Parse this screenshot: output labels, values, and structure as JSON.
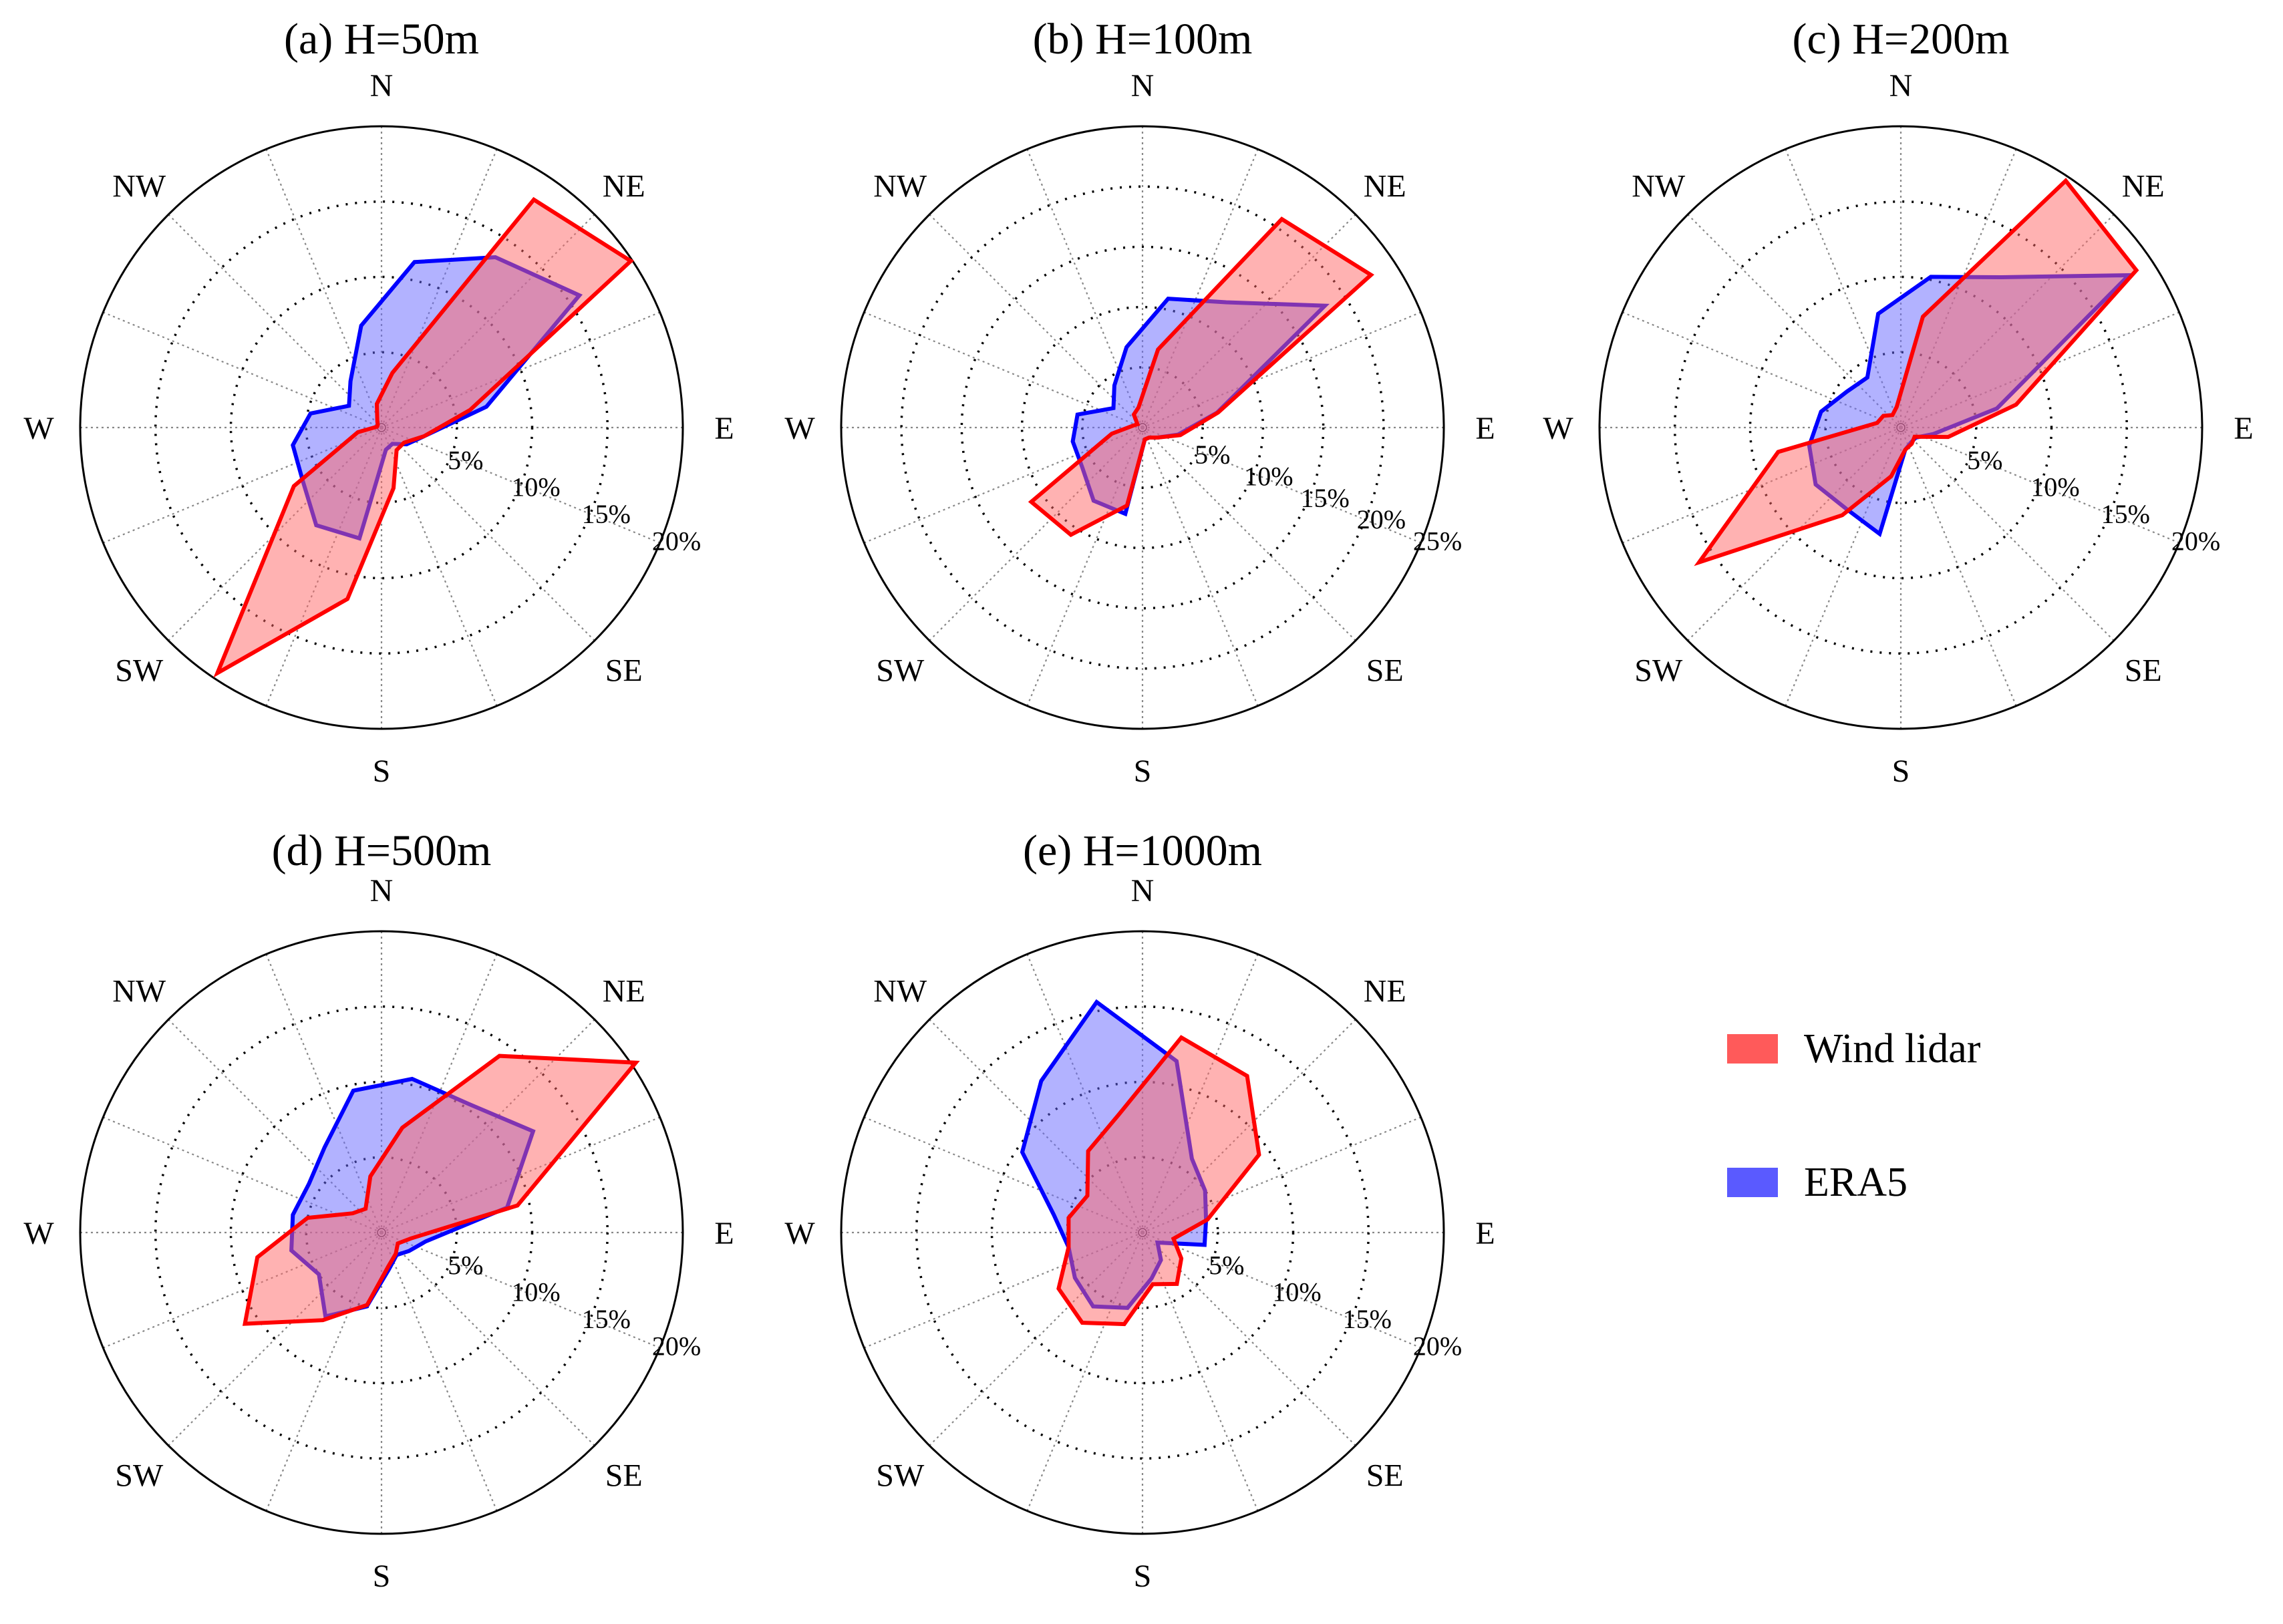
{
  "legend": [
    {
      "label": "Wind lidar",
      "color": "#ff5a5a"
    },
    {
      "label": "ERA5",
      "color": "#5a5aff"
    }
  ],
  "colors": {
    "lidar_line": "#ff0000",
    "lidar_fill": "#ff6666",
    "era5_line": "#0000ff",
    "era5_fill": "#6666ff"
  },
  "chart_data": [
    {
      "type": "polar-area",
      "title": "(a) H=50m",
      "rmax": 20,
      "rings": [
        5,
        10,
        15,
        20
      ],
      "ring_labels": [
        "5%",
        "10%",
        "15%",
        "20%"
      ],
      "direction_labels": [
        "N",
        "NE",
        "E",
        "SE",
        "S",
        "SW",
        "W",
        "NW"
      ],
      "bin_bearings_deg": [
        11.25,
        33.75,
        56.25,
        78.75,
        101.25,
        123.75,
        146.25,
        168.75,
        191.25,
        213.75,
        236.25,
        258.75,
        281.25,
        303.75,
        326.25,
        348.75
      ],
      "series": [
        {
          "name": "Wind lidar",
          "values": [
            3.7,
            18.2,
            19.9,
            6.0,
            2.9,
            1.8,
            1.8,
            4.1,
            11.6,
            19.6,
            7.0,
            1.6,
            0.3,
            0.3,
            0.5,
            1.6
          ]
        },
        {
          "name": "ERA5",
          "values": [
            11.2,
            13.6,
            15.8,
            7.1,
            2.9,
            2.0,
            1.3,
            1.5,
            7.5,
            7.8,
            6.3,
            6.0,
            4.8,
            2.6,
            3.7,
            6.9
          ]
        }
      ]
    },
    {
      "type": "polar-area",
      "title": "(b) H=100m",
      "rmax": 25,
      "rings": [
        5,
        10,
        15,
        20,
        25
      ],
      "ring_labels": [
        "5%",
        "10%",
        "15%",
        "20%",
        "25%"
      ],
      "direction_labels": [
        "N",
        "NE",
        "E",
        "SE",
        "S",
        "SW",
        "W",
        "NW"
      ],
      "bin_bearings_deg": [
        11.25,
        33.75,
        56.25,
        78.75,
        101.25,
        123.75,
        146.25,
        168.75,
        191.25,
        213.75,
        236.25,
        258.75,
        281.25,
        303.75,
        326.25,
        348.75
      ],
      "series": [
        {
          "name": "Wind lidar",
          "values": [
            6.6,
            20.8,
            22.8,
            6.4,
            3.2,
            1.5,
            1.0,
            1.0,
            6.6,
            10.7,
            11.1,
            2.6,
            0.8,
            0.5,
            1.3,
            1.7
          ]
        },
        {
          "name": "ERA5",
          "values": [
            10.9,
            12.5,
            18.2,
            6.3,
            3.0,
            1.5,
            1.0,
            1.0,
            7.3,
            7.3,
            6.0,
            5.9,
            5.5,
            2.9,
            4.2,
            6.8
          ]
        }
      ]
    },
    {
      "type": "polar-area",
      "title": "(c) H=200m",
      "rmax": 20,
      "rings": [
        5,
        10,
        15,
        20
      ],
      "ring_labels": [
        "5%",
        "10%",
        "15%",
        "20%"
      ],
      "direction_labels": [
        "N",
        "NE",
        "E",
        "SE",
        "S",
        "SW",
        "W",
        "NW"
      ],
      "bin_bearings_deg": [
        11.25,
        33.75,
        56.25,
        78.75,
        101.25,
        123.75,
        146.25,
        168.75,
        191.25,
        213.75,
        236.25,
        258.75,
        281.25,
        303.75,
        326.25,
        348.75
      ],
      "series": [
        {
          "name": "Wind lidar",
          "values": [
            7.5,
            19.7,
            18.8,
            7.8,
            3.2,
            1.1,
            1.3,
            1.5,
            3.3,
            7.0,
            16.1,
            8.3,
            1.6,
            1.4,
            1.0,
            1.4
          ]
        },
        {
          "name": "ERA5",
          "values": [
            10.2,
            12.0,
            18.2,
            6.5,
            2.2,
            1.2,
            1.2,
            1.5,
            7.2,
            6.5,
            6.8,
            6.2,
            5.4,
            4.3,
            4.0,
            7.7
          ]
        }
      ]
    },
    {
      "type": "polar-area",
      "title": "(d) H=500m",
      "rmax": 20,
      "rings": [
        5,
        10,
        15,
        20
      ],
      "ring_labels": [
        "5%",
        "10%",
        "15%",
        "20%"
      ],
      "direction_labels": [
        "N",
        "NE",
        "E",
        "SE",
        "S",
        "SW",
        "W",
        "NW"
      ],
      "bin_bearings_deg": [
        11.25,
        33.75,
        56.25,
        78.75,
        101.25,
        123.75,
        146.25,
        168.75,
        191.25,
        213.75,
        236.25,
        258.75,
        281.25,
        303.75,
        326.25,
        348.75
      ],
      "series": [
        {
          "name": "Wind lidar",
          "values": [
            7.1,
            14.1,
            20.3,
            9.2,
            2.0,
            1.3,
            1.7,
            2.3,
            4.9,
            7.0,
            10.9,
            8.4,
            5.0,
            2.3,
            1.9,
            3.8
          ]
        },
        {
          "name": "ERA5",
          "values": [
            10.4,
            10.3,
            12.1,
            8.5,
            3.0,
            2.2,
            1.8,
            2.5,
            5.0,
            6.7,
            5.0,
            6.1,
            6.0,
            5.8,
            6.8,
            9.6
          ]
        }
      ]
    },
    {
      "type": "polar-area",
      "title": "(e) H=1000m",
      "rmax": 20,
      "rings": [
        5,
        10,
        15,
        20
      ],
      "ring_labels": [
        "5%",
        "10%",
        "15%",
        "20%"
      ],
      "direction_labels": [
        "N",
        "NE",
        "E",
        "SE",
        "S",
        "SW",
        "W",
        "NW"
      ],
      "bin_bearings_deg": [
        11.25,
        33.75,
        56.25,
        78.75,
        101.25,
        123.75,
        146.25,
        168.75,
        191.25,
        213.75,
        236.25,
        258.75,
        281.25,
        303.75,
        326.25,
        348.75
      ],
      "series": [
        {
          "name": "Wind lidar",
          "values": [
            13.2,
            12.5,
            9.3,
            4.4,
            2.1,
            3.1,
            4.1,
            3.5,
            6.2,
            7.2,
            6.7,
            5.0,
            5.0,
            4.4,
            6.5,
            8.0
          ]
        },
        {
          "name": "ERA5",
          "values": [
            11.6,
            5.9,
            5.0,
            4.3,
            4.2,
            1.2,
            2.2,
            3.1,
            5.1,
            5.9,
            5.4,
            5.0,
            6.0,
            9.6,
            12.1,
            15.6
          ]
        }
      ]
    }
  ]
}
